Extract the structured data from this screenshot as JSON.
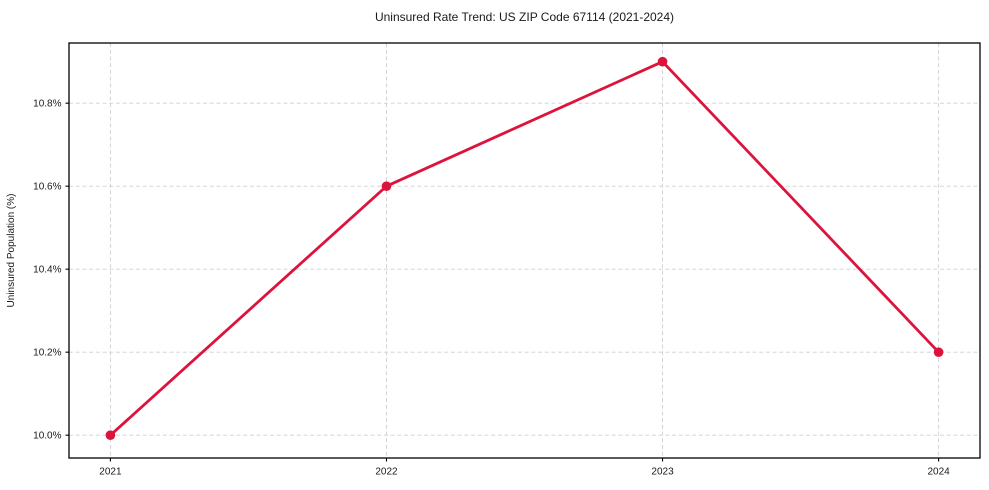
{
  "chart_data": {
    "type": "line",
    "title": "Uninsured Rate Trend: US ZIP Code 67114 (2021-2024)",
    "xlabel": "",
    "ylabel": "Uninsured Population (%)",
    "categories": [
      "2021",
      "2022",
      "2023",
      "2024"
    ],
    "x": [
      2021,
      2022,
      2023,
      2024
    ],
    "series": [
      {
        "name": "Uninsured Population (%)",
        "values": [
          10.0,
          10.6,
          10.9,
          10.2
        ]
      }
    ],
    "y_ticks": [
      10.0,
      10.2,
      10.4,
      10.6,
      10.8
    ],
    "y_tick_labels": [
      "10.0%",
      "10.2%",
      "10.4%",
      "10.6%",
      "10.8%"
    ],
    "xlim": [
      2020.85,
      2024.15
    ],
    "ylim": [
      9.945,
      10.945
    ],
    "grid": true,
    "grid_style": "dashed",
    "legend": "none",
    "marker": "circle",
    "colors": {
      "line": "#dc143c",
      "marker": "#dc143c",
      "grid": "#cfcfcf",
      "frame": "#000000",
      "text": "#1a1a1a",
      "background": "#ffffff"
    }
  }
}
